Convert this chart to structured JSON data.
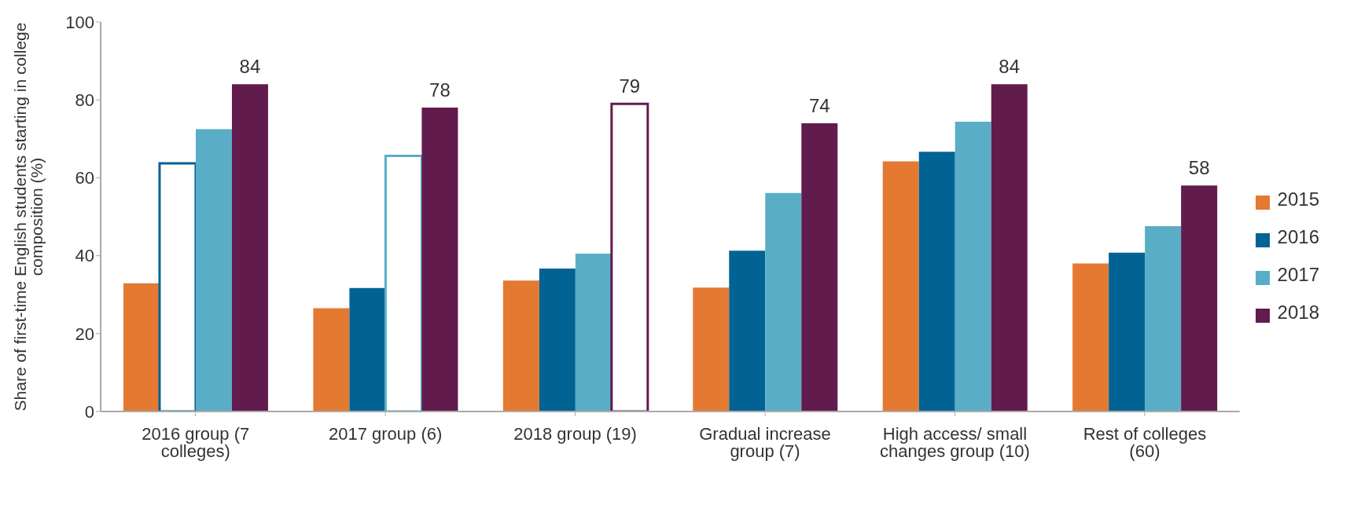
{
  "chart_data": {
    "type": "bar",
    "ylabel": "Share of first-time English students starting in college composition (%)",
    "categories": [
      "2016 group (7 colleges)",
      "2017 group (6)",
      "2018 group (19)",
      "Gradual increase group (7)",
      "High access/ small changes group (10)",
      "Rest of colleges (60)"
    ],
    "series": [
      {
        "name": "2015",
        "color": "#e47932",
        "values": [
          32.9,
          26.5,
          33.6,
          31.8,
          64.2,
          38.0
        ]
      },
      {
        "name": "2016",
        "color": "#006394",
        "values": [
          63.7,
          31.7,
          36.7,
          41.3,
          66.7,
          40.8
        ],
        "colors": [
          "#ffffff",
          "#006394",
          "#006394",
          "#006394",
          "#006394",
          "#006394"
        ]
      },
      {
        "name": "2017",
        "color": "#5aadc6",
        "values": [
          72.5,
          65.6,
          40.5,
          56.1,
          74.4,
          47.6
        ],
        "colors": [
          "#5aadc6",
          "#ffffff",
          "#5aadc6",
          "#5aadc6",
          "#5aadc6",
          "#5aadc6"
        ]
      },
      {
        "name": "2018",
        "color": "#621b4d",
        "values": [
          84,
          78,
          79,
          74,
          84,
          58
        ],
        "colors": [
          "#621b4d",
          "#621b4d",
          "#ffffff",
          "#621b4d",
          "#621b4d",
          "#621b4d"
        ],
        "value_labels": [
          "84",
          "78",
          "79",
          "74",
          "84",
          "58"
        ]
      }
    ],
    "ylim": [
      0,
      100
    ],
    "yticks": [
      0,
      20,
      40,
      60,
      80,
      100
    ],
    "grid": false,
    "legend": "right"
  }
}
